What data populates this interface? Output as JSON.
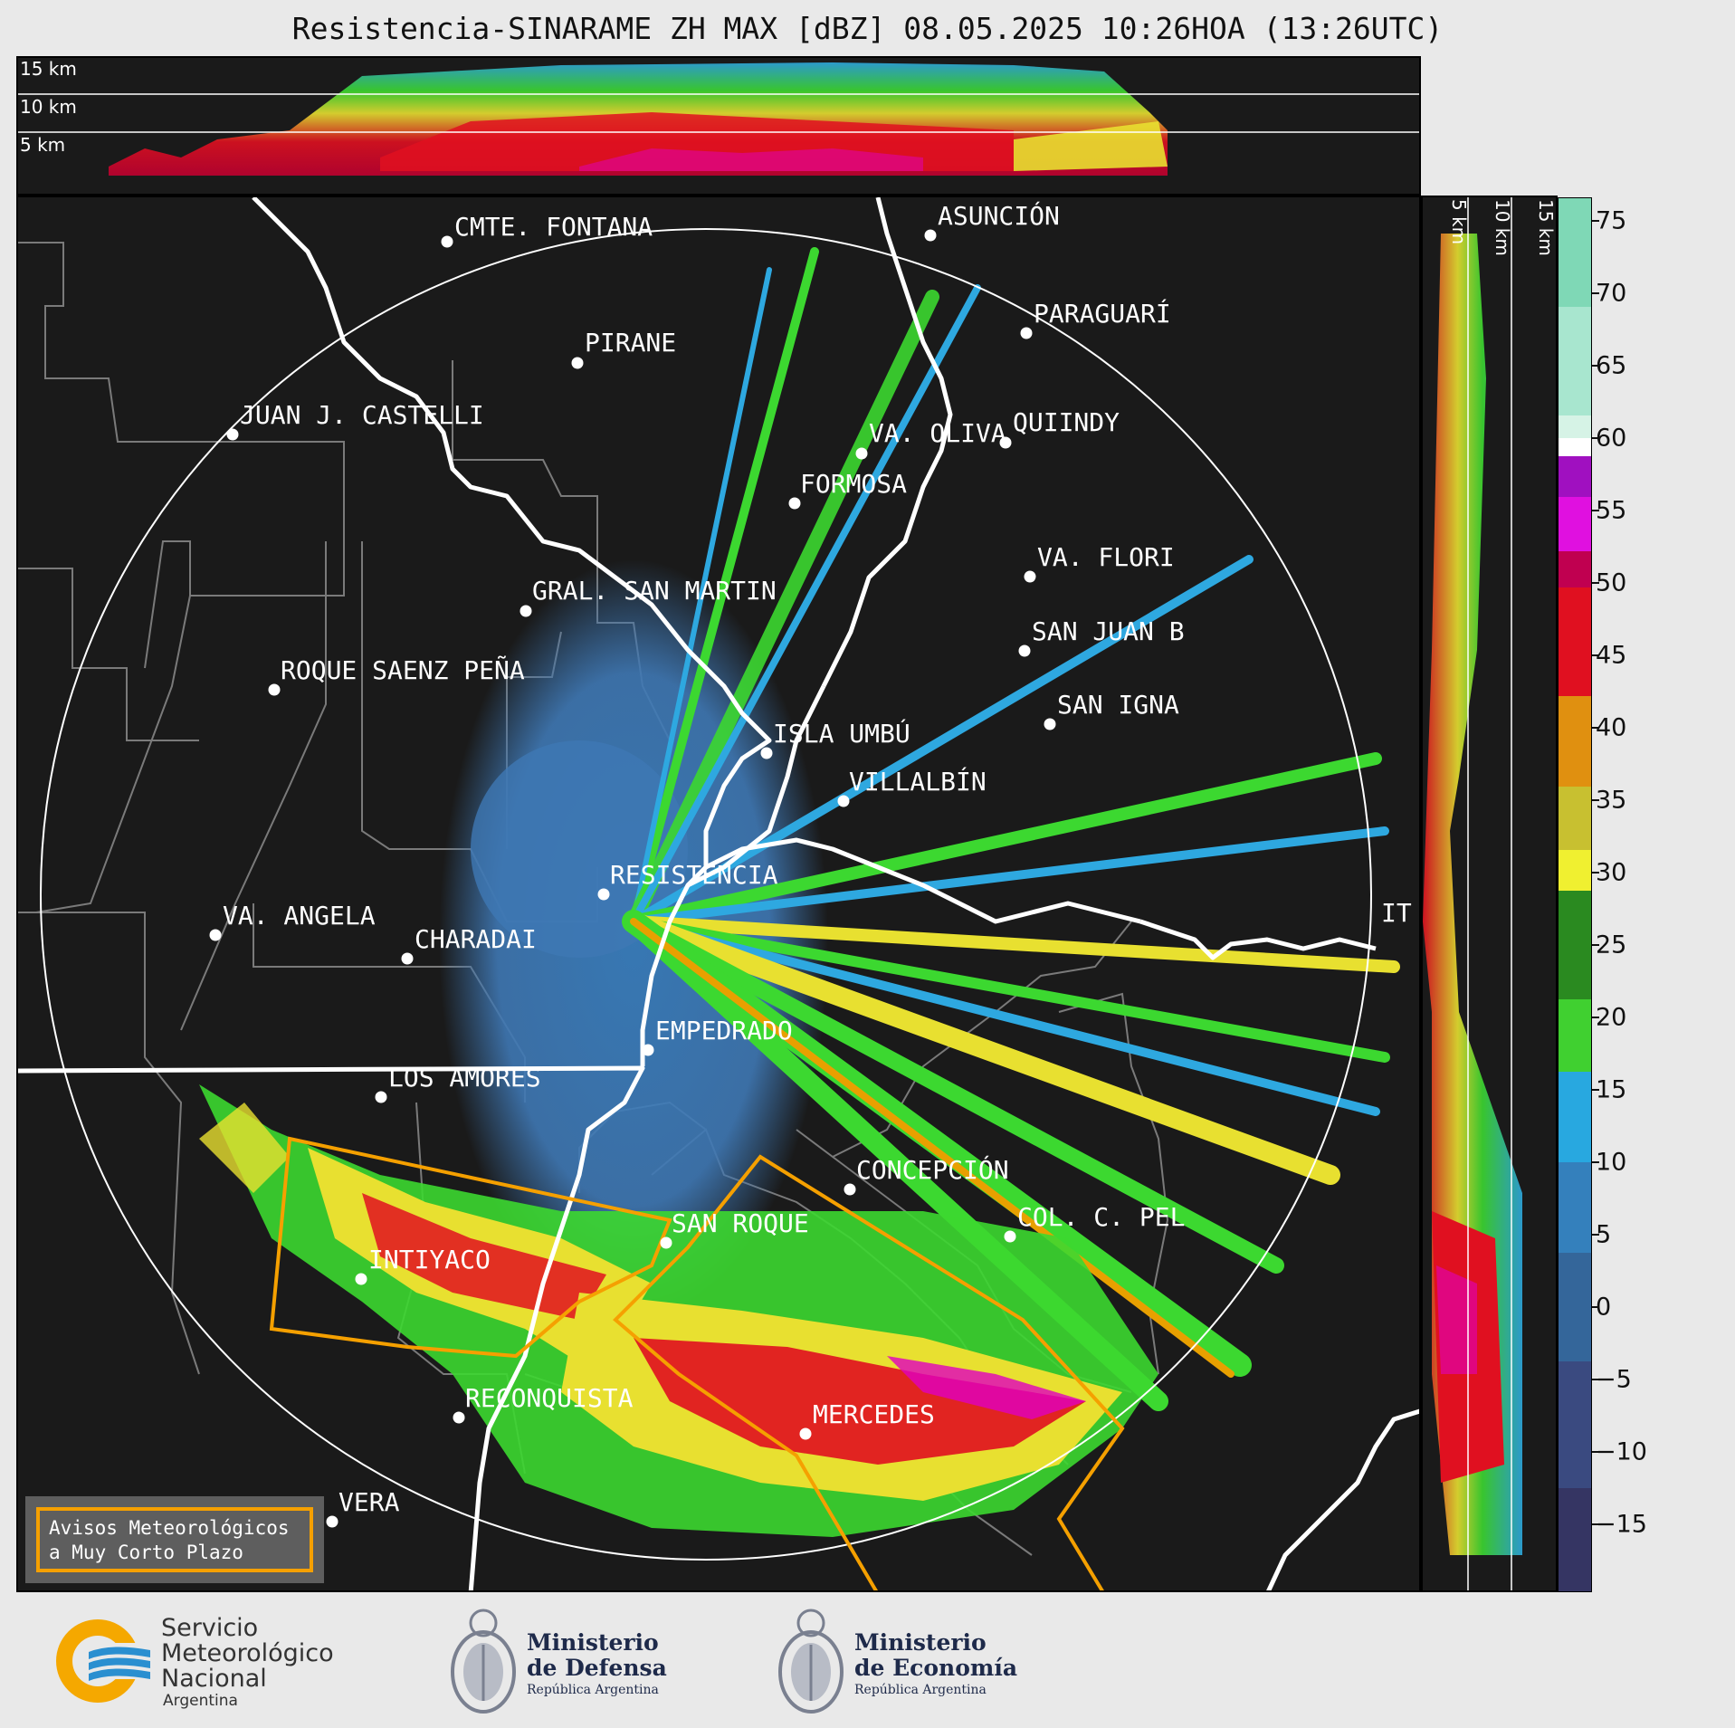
{
  "title": "Resistencia-SINARAME ZH MAX [dBZ] 08.05.2025 10:26HOA (13:26UTC)",
  "height_labels": [
    "15 km",
    "10 km",
    "5 km"
  ],
  "colorbar": {
    "ticks": [
      "75",
      "70",
      "65",
      "60",
      "55",
      "50",
      "45",
      "40",
      "35",
      "30",
      "25",
      "20",
      "15",
      "10",
      "5",
      "0",
      "−5",
      "−10",
      "−15"
    ]
  },
  "cities": [
    {
      "name": "CMTE. FONTANA"
    },
    {
      "name": "PIRANE"
    },
    {
      "name": "JUAN J. CASTELLI"
    },
    {
      "name": "VA. OLIVA"
    },
    {
      "name": "QUIINDY"
    },
    {
      "name": "FORMOSA"
    },
    {
      "name": "ASUNCIÓN"
    },
    {
      "name": "PARAGUARÍ"
    },
    {
      "name": "VA. FLORI"
    },
    {
      "name": "SAN JUAN B"
    },
    {
      "name": "SAN IGNA"
    },
    {
      "name": "GRAL. SAN MARTIN"
    },
    {
      "name": "ROQUE SAENZ PEÑA"
    },
    {
      "name": "ISLA UMBÚ"
    },
    {
      "name": "VILLALBÍN"
    },
    {
      "name": "RESISTENCIA"
    },
    {
      "name": "IT"
    },
    {
      "name": "VA. ANGELA"
    },
    {
      "name": "CHARADAI"
    },
    {
      "name": "EMPEDRADO"
    },
    {
      "name": "LOS AMORES"
    },
    {
      "name": "CONCEPCIÓN"
    },
    {
      "name": "SAN ROQUE"
    },
    {
      "name": "COL. C. PEL"
    },
    {
      "name": "INTIYACO"
    },
    {
      "name": "RECONQUISTA"
    },
    {
      "name": "MERCEDES"
    },
    {
      "name": "VERA"
    }
  ],
  "legend": {
    "line1": "Avisos Meteorológicos",
    "line2": "a Muy Corto Plazo"
  },
  "footer": {
    "smn": {
      "line1": "Servicio",
      "line2": "Meteorológico",
      "line3": "Nacional",
      "line4": "Argentina"
    },
    "defensa": {
      "line1": "Ministerio",
      "line2": "de Defensa",
      "line3": "República Argentina"
    },
    "economia": {
      "line1": "Ministerio",
      "line2": "de Economía",
      "line3": "República Argentina"
    }
  }
}
